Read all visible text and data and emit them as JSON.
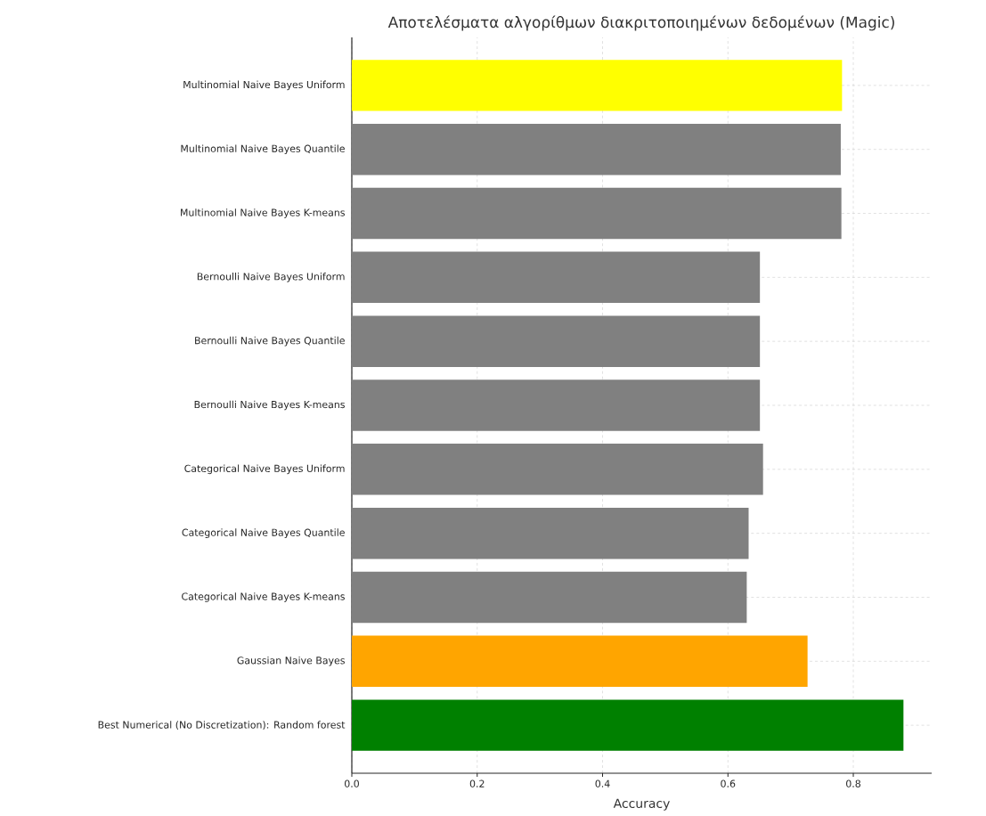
{
  "chart_data": {
    "type": "bar",
    "orientation": "horizontal",
    "title": "Αποτελέσματα αλγορίθμων διακριτοποιημένων δεδομένων (Magic)",
    "xlabel": "Accuracy",
    "categories": [
      "Multinomial Naive Bayes Uniform",
      "Multinomial Naive Bayes Quantile",
      "Multinomial Naive Bayes K-means",
      "Bernoulli Naive Bayes Uniform",
      "Bernoulli Naive Bayes Quantile",
      "Bernoulli Naive Bayes K-means",
      "Categorical Naive Bayes Uniform",
      "Categorical Naive Bayes Quantile",
      "Categorical Naive Bayes K-means",
      "Gaussian Naive Bayes",
      "Best Numerical (No Discretization): Random forest"
    ],
    "values": [
      0.782,
      0.78,
      0.781,
      0.651,
      0.651,
      0.651,
      0.656,
      0.633,
      0.63,
      0.727,
      0.88
    ],
    "colors": [
      "#ffff00",
      "#808080",
      "#808080",
      "#808080",
      "#808080",
      "#808080",
      "#808080",
      "#808080",
      "#808080",
      "#ffa500",
      "#008000"
    ],
    "xlim": [
      0,
      0.925
    ],
    "xticks": [
      {
        "value": 0,
        "label": "0.0"
      },
      0.2,
      0.4,
      0.6,
      0.8
    ],
    "grid": true
  }
}
